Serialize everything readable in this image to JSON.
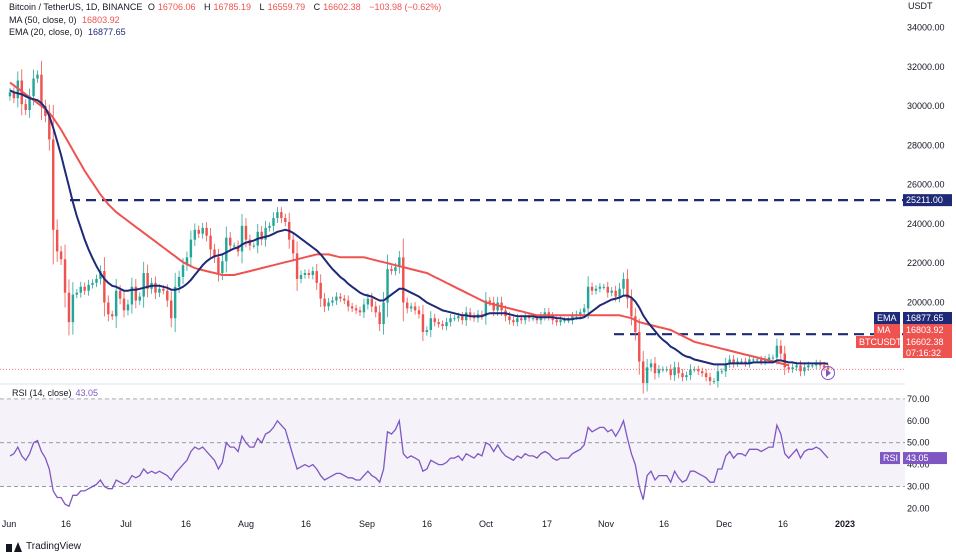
{
  "header": {
    "symbol": "Bitcoin / TetherUS, 1D, BINANCE",
    "open_label": "O",
    "open": "16706.06",
    "high_label": "H",
    "high": "16785.19",
    "low_label": "L",
    "low": "16559.79",
    "close_label": "C",
    "close": "16602.38",
    "change": "−103.98 (−0.62%)"
  },
  "ma_legend": {
    "label": "MA (50, close, 0)",
    "value": "16803.92"
  },
  "ema_legend": {
    "label": "EMA (20, close, 0)",
    "value": "16877.65"
  },
  "rsi_legend": {
    "label": "RSI (14, close)",
    "value": "43.05"
  },
  "price_axis": {
    "unit": "USDT"
  },
  "badges": {
    "level_top": "25211.00",
    "level_mid": "18388.00",
    "ema_tag": "EMA",
    "ema_value": "16877.65",
    "ma_tag": "MA",
    "ma_value": "16803.92",
    "price_tag": "BTCUSDT",
    "price_value": "16602.38",
    "countdown": "07:16:32",
    "rsi_tag": "RSI",
    "rsi_value": "43.05"
  },
  "branding": {
    "logo_text": "TradingView"
  },
  "colors": {
    "ma": "#ef5350",
    "ema": "#1e2a78",
    "rsi": "#7e57c2",
    "up": "#26a69a",
    "down": "#ef5350",
    "level": "#1e2a78"
  },
  "chart_data": [
    {
      "type": "candlestick",
      "title": "Bitcoin / TetherUS, 1D, BINANCE",
      "x_ticks": [
        "Jun",
        "16",
        "Jul",
        "16",
        "Aug",
        "16",
        "Sep",
        "16",
        "Oct",
        "17",
        "Nov",
        "16",
        "Dec",
        "16",
        "2023"
      ],
      "y_ticks": [
        "34000.00",
        "32000.00",
        "30000.00",
        "28000.00",
        "26000.00",
        "24000.00",
        "22000.00",
        "20000.00"
      ],
      "ylim": [
        15800,
        35400
      ],
      "horizontal_levels": [
        25211,
        18388
      ],
      "series": [
        {
          "name": "BTCUSDT",
          "close": [
            30700,
            30400,
            31300,
            30100,
            29800,
            30500,
            31400,
            31600,
            30000,
            29500,
            28300,
            23700,
            22600,
            22200,
            20500,
            19000,
            20400,
            20500,
            20800,
            20600,
            20900,
            21000,
            21200,
            21600,
            20000,
            19400,
            19300,
            20600,
            20200,
            19600,
            19900,
            20800,
            20100,
            20300,
            21500,
            20700,
            21000,
            20500,
            20700,
            20600,
            20100,
            19200,
            20800,
            21300,
            21900,
            22300,
            23200,
            23700,
            23500,
            23800,
            23400,
            22700,
            22300,
            21500,
            22100,
            23300,
            22900,
            22900,
            22600,
            23900,
            23200,
            22900,
            22900,
            23600,
            23200,
            23800,
            23900,
            24300,
            24600,
            24300,
            24100,
            23200,
            22500,
            21200,
            21400,
            21500,
            21400,
            21600,
            21000,
            20200,
            19800,
            20000,
            20100,
            20300,
            20200,
            20100,
            19800,
            19700,
            19600,
            19500,
            19900,
            20200,
            19800,
            19500,
            18900,
            20000,
            21700,
            21600,
            21800,
            22300,
            20000,
            19700,
            19800,
            19600,
            19400,
            18500,
            18600,
            19200,
            19000,
            18900,
            18800,
            19000,
            19200,
            19200,
            19300,
            19100,
            19500,
            19300,
            19200,
            19400,
            19300,
            20100,
            20000,
            19600,
            20000,
            19600,
            19300,
            19100,
            19000,
            19200,
            19100,
            19300,
            19200,
            19200,
            19100,
            19300,
            19500,
            19300,
            19100,
            19000,
            19100,
            19100,
            19100,
            19300,
            19400,
            19500,
            19700,
            20800,
            20600,
            20700,
            20800,
            20800,
            20500,
            20600,
            20300,
            20700,
            21200,
            20200,
            19300,
            18500,
            17000,
            15900,
            16700,
            16900,
            16400,
            16600,
            16600,
            16600,
            16300,
            16700,
            16400,
            16200,
            16300,
            16600,
            16600,
            16500,
            16400,
            16200,
            16000,
            16000,
            16500,
            16500,
            16900,
            17100,
            16900,
            17000,
            17000,
            16900,
            17100,
            17100,
            17100,
            17000,
            17100,
            17200,
            17200,
            17800,
            17400,
            16700,
            16600,
            16700,
            16800,
            16500,
            16700,
            16800,
            16800,
            16900,
            16800,
            16700,
            16600
          ],
          "ma_50": [
            31200,
            31050,
            30900,
            30750,
            30600,
            30450,
            30300,
            30150,
            30000,
            29850,
            29650,
            29400,
            29100,
            28800,
            28450,
            28100,
            27750,
            27400,
            27050,
            26700,
            26400,
            26100,
            25800,
            25500,
            25250,
            25000,
            24800,
            24600,
            24450,
            24300,
            24150,
            24000,
            23850,
            23700,
            23550,
            23400,
            23250,
            23100,
            22950,
            22800,
            22650,
            22500,
            22350,
            22200,
            22050,
            21950,
            21850,
            21750,
            21700,
            21650,
            21600,
            21550,
            21500,
            21450,
            21400,
            21400,
            21400,
            21400,
            21450,
            21500,
            21550,
            21600,
            21650,
            21700,
            21750,
            21800,
            21850,
            21900,
            21950,
            22000,
            22050,
            22100,
            22150,
            22200,
            22250,
            22300,
            22350,
            22400,
            22450,
            22450,
            22450,
            22450,
            22400,
            22350,
            22300,
            22300,
            22300,
            22300,
            22300,
            22300,
            22300,
            22250,
            22200,
            22150,
            22100,
            22050,
            22000,
            21950,
            21900,
            21850,
            21800,
            21750,
            21700,
            21650,
            21600,
            21550,
            21500,
            21400,
            21300,
            21200,
            21100,
            21000,
            20900,
            20800,
            20700,
            20600,
            20500,
            20400,
            20300,
            20200,
            20100,
            20000,
            19950,
            19900,
            19850,
            19800,
            19750,
            19700,
            19650,
            19600,
            19550,
            19500,
            19450,
            19400,
            19350,
            19350,
            19350,
            19350,
            19350,
            19350,
            19350,
            19350,
            19350,
            19350,
            19350,
            19350,
            19350,
            19350,
            19350,
            19350,
            19350,
            19350,
            19350,
            19350,
            19350,
            19350,
            19300,
            19250,
            19200,
            19100,
            19000,
            18950,
            18900,
            18850,
            18800,
            18750,
            18700,
            18650,
            18600,
            18500,
            18400,
            18300,
            18200,
            18100,
            18000,
            17950,
            17900,
            17850,
            17800,
            17750,
            17700,
            17650,
            17600,
            17550,
            17500,
            17450,
            17400,
            17350,
            17300,
            17250,
            17200,
            17150,
            17100,
            17050,
            17000,
            16950,
            16900,
            16850,
            16800
          ],
          "ema_20": [
            30800,
            30700,
            30650,
            30600,
            30500,
            30400,
            30350,
            30300,
            30150,
            29900,
            29500,
            28900,
            28200,
            27500,
            26700,
            25900,
            25100,
            24400,
            23800,
            23200,
            22700,
            22250,
            21850,
            21500,
            21200,
            21000,
            20850,
            20800,
            20700,
            20600,
            20600,
            20650,
            20650,
            20700,
            20750,
            20800,
            20850,
            20850,
            20850,
            20800,
            20750,
            20650,
            20650,
            20700,
            20800,
            20950,
            21150,
            21400,
            21650,
            21900,
            22100,
            22250,
            22350,
            22400,
            22450,
            22550,
            22650,
            22750,
            22800,
            22950,
            23050,
            23100,
            23150,
            23250,
            23300,
            23350,
            23400,
            23500,
            23600,
            23650,
            23700,
            23650,
            23550,
            23400,
            23250,
            23100,
            22950,
            22800,
            22650,
            22450,
            22200,
            21950,
            21700,
            21500,
            21300,
            21150,
            20950,
            20800,
            20650,
            20500,
            20400,
            20350,
            20300,
            20200,
            20100,
            20100,
            20250,
            20400,
            20550,
            20700,
            20700,
            20600,
            20500,
            20400,
            20300,
            20150,
            20000,
            19900,
            19800,
            19700,
            19600,
            19550,
            19500,
            19450,
            19400,
            19350,
            19350,
            19300,
            19300,
            19300,
            19300,
            19400,
            19450,
            19450,
            19450,
            19450,
            19450,
            19400,
            19350,
            19300,
            19300,
            19300,
            19300,
            19300,
            19250,
            19250,
            19250,
            19250,
            19250,
            19200,
            19200,
            19150,
            19150,
            19150,
            19200,
            19200,
            19250,
            19400,
            19550,
            19700,
            19850,
            19950,
            20050,
            20150,
            20200,
            20250,
            20350,
            20350,
            20250,
            20050,
            19750,
            19350,
            19050,
            18800,
            18550,
            18300,
            18100,
            17950,
            17750,
            17650,
            17500,
            17350,
            17250,
            17200,
            17100,
            17050,
            17000,
            16950,
            16900,
            16850,
            16850,
            16850,
            16850,
            16900,
            16900,
            16900,
            16900,
            16900,
            16900,
            16950,
            16950,
            16950,
            16950,
            16950,
            16950,
            17050,
            17050,
            17000,
            16950,
            16950,
            16900,
            16900,
            16900,
            16900,
            16900,
            16900,
            16900,
            16900,
            16880
          ]
        }
      ]
    },
    {
      "type": "line",
      "title": "RSI (14, close)",
      "y_ticks": [
        "70.00",
        "60.00",
        "50.00",
        "40.00",
        "30.00",
        "20.00"
      ],
      "ylim": [
        17,
        75
      ],
      "band": [
        30,
        70
      ],
      "reference_lines": [
        70,
        50,
        30
      ],
      "series": [
        {
          "name": "RSI",
          "values": [
            44,
            45,
            48,
            44,
            42,
            45,
            50,
            51,
            46,
            43,
            38,
            28,
            25,
            25,
            22,
            21,
            26,
            26,
            28,
            28,
            29,
            30,
            31,
            33,
            30,
            29,
            29,
            33,
            32,
            31,
            32,
            35,
            34,
            35,
            38,
            36,
            37,
            36,
            37,
            36,
            35,
            33,
            36,
            38,
            40,
            42,
            46,
            48,
            47,
            48,
            46,
            44,
            42,
            38,
            41,
            50,
            48,
            48,
            46,
            53,
            50,
            48,
            48,
            52,
            50,
            54,
            55,
            57,
            60,
            58,
            56,
            50,
            44,
            38,
            39,
            40,
            39,
            40,
            38,
            35,
            33,
            34,
            35,
            36,
            36,
            35,
            34,
            34,
            33,
            33,
            35,
            37,
            35,
            34,
            32,
            38,
            55,
            54,
            56,
            60,
            45,
            43,
            44,
            43,
            42,
            37,
            38,
            42,
            41,
            40,
            40,
            41,
            43,
            43,
            44,
            42,
            45,
            44,
            43,
            45,
            44,
            50,
            49,
            46,
            49,
            46,
            44,
            43,
            42,
            44,
            43,
            45,
            44,
            44,
            43,
            45,
            46,
            45,
            43,
            42,
            43,
            43,
            43,
            45,
            46,
            47,
            49,
            57,
            55,
            56,
            57,
            57,
            55,
            56,
            53,
            56,
            60,
            52,
            45,
            40,
            30,
            24,
            35,
            37,
            33,
            35,
            35,
            35,
            32,
            37,
            34,
            32,
            33,
            37,
            37,
            36,
            35,
            34,
            32,
            32,
            38,
            38,
            44,
            46,
            43,
            45,
            45,
            44,
            47,
            47,
            47,
            46,
            47,
            48,
            48,
            58,
            54,
            45,
            43,
            45,
            47,
            43,
            46,
            47,
            47,
            48,
            47,
            45,
            43
          ]
        }
      ]
    }
  ]
}
